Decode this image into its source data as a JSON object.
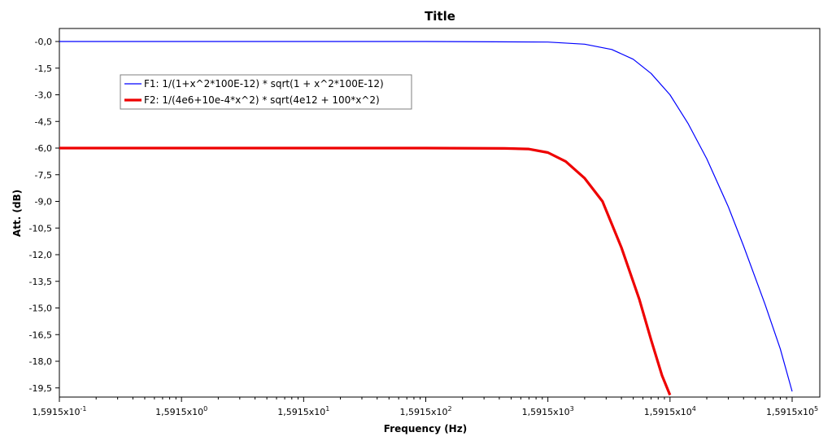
{
  "chart_data": {
    "type": "line",
    "title": "Title",
    "xlabel": "Frequency (Hz)",
    "ylabel": "Att. (dB)",
    "x_scale": "log",
    "xlim": [
      0.15915,
      159150
    ],
    "ylim": [
      -20.0,
      0.6
    ],
    "x_tick_values": [
      0.15915,
      1.5915,
      15.915,
      159.15,
      1591.5,
      15915,
      159150
    ],
    "x_tick_labels": [
      {
        "base": "1,5915x10",
        "exp": "-1"
      },
      {
        "base": "1,5915x10",
        "exp": "0"
      },
      {
        "base": "1,5915x10",
        "exp": "1"
      },
      {
        "base": "1,5915x10",
        "exp": "2"
      },
      {
        "base": "1,5915x10",
        "exp": "3"
      },
      {
        "base": "1,5915x10",
        "exp": "4"
      },
      {
        "base": "1,5915x10",
        "exp": "5"
      }
    ],
    "y_ticks": [
      {
        "value": 0,
        "label": "-0,0"
      },
      {
        "value": -1.5,
        "label": "-1,5"
      },
      {
        "value": -3.0,
        "label": "-3,0"
      },
      {
        "value": -4.5,
        "label": "-4,5"
      },
      {
        "value": -6.0,
        "label": "-6,0"
      },
      {
        "value": -7.5,
        "label": "-7,5"
      },
      {
        "value": -9.0,
        "label": "-9,0"
      },
      {
        "value": -10.5,
        "label": "-10,5"
      },
      {
        "value": -12.0,
        "label": "-12,0"
      },
      {
        "value": -13.5,
        "label": "-13,5"
      },
      {
        "value": -15.0,
        "label": "-15,0"
      },
      {
        "value": -16.5,
        "label": "-16,5"
      },
      {
        "value": -18.0,
        "label": "-18,0"
      },
      {
        "value": -19.5,
        "label": "-19,5"
      }
    ],
    "grid": false,
    "legend_position": "top-left",
    "series": [
      {
        "name": "F1: 1/(1+x^2*100E-12) * sqrt(1 + x^2*100E-12)",
        "color": "#0000ff",
        "x": [
          0.15915,
          1.5915,
          15.915,
          159.15,
          1591.5,
          3183,
          5305,
          7957,
          11141,
          15915,
          22281,
          31830,
          47745,
          63660,
          95490,
          127320,
          159150
        ],
        "y": [
          0.0,
          0.0,
          0.0,
          0.0,
          -0.03,
          -0.15,
          -0.45,
          -1.0,
          -1.8,
          -3.0,
          -4.6,
          -6.6,
          -9.3,
          -11.5,
          -14.8,
          -17.3,
          -19.7
        ]
      },
      {
        "name": "F2: 1/(4e6+10e-4*x^2) * sqrt(4e12 + 100*x^2)",
        "color": "#ee0000",
        "x": [
          0.15915,
          1.5915,
          15.915,
          159.15,
          700,
          1100,
          1591.5,
          2228,
          3183,
          4456,
          6366,
          8912,
          11141,
          13687,
          15915
        ],
        "y": [
          -6.0,
          -6.0,
          -6.0,
          -6.0,
          -6.02,
          -6.05,
          -6.25,
          -6.75,
          -7.7,
          -9.0,
          -11.6,
          -14.5,
          -16.8,
          -18.8,
          -19.9
        ]
      }
    ]
  }
}
